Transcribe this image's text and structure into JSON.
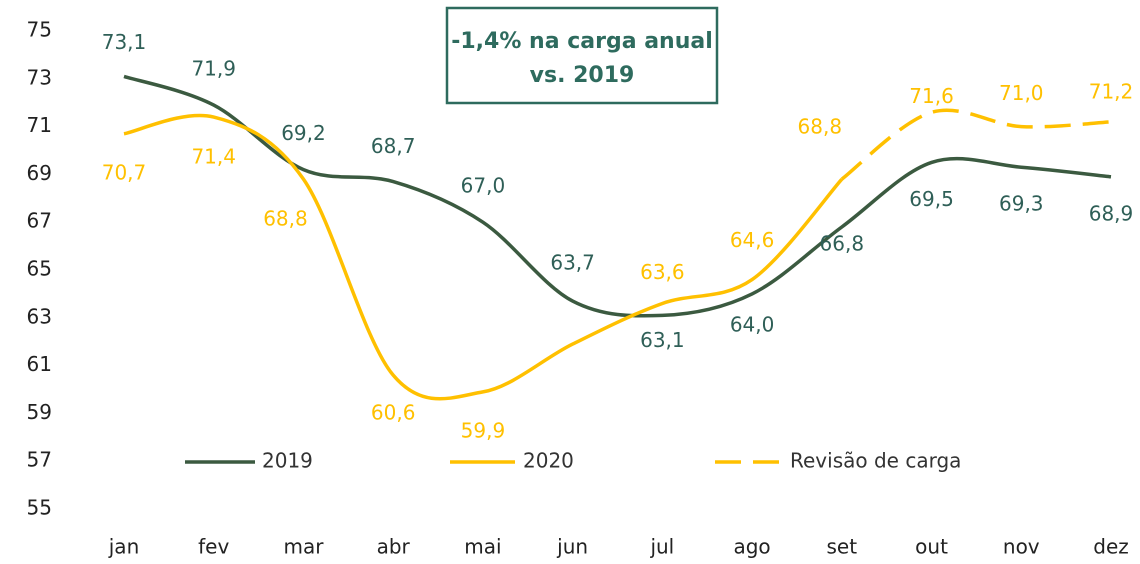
{
  "chart_data": {
    "type": "line",
    "annotation": [
      "-1,4% na carga anual",
      "vs. 2019"
    ],
    "categories": [
      "jan",
      "fev",
      "mar",
      "abr",
      "mai",
      "jun",
      "jul",
      "ago",
      "set",
      "out",
      "nov",
      "dez"
    ],
    "series": [
      {
        "name": "2019",
        "color": "#3b5a40",
        "label_color": "#2f5f57",
        "dashed": false,
        "values": [
          73.1,
          71.9,
          69.2,
          68.7,
          67.0,
          63.7,
          63.1,
          64.0,
          66.8,
          69.5,
          69.3,
          68.9
        ],
        "value_labels": [
          "73,1",
          "71,9",
          "69,2",
          "68,7",
          "67,0",
          "63,7",
          "63,1",
          "64,0",
          "66,8",
          "69,5",
          "69,3",
          "68,9"
        ]
      },
      {
        "name": "2020",
        "color": "#ffc000",
        "label_color": "#ffc000",
        "dashed": false,
        "values": [
          70.7,
          71.4,
          68.8,
          60.6,
          59.9,
          61.9,
          63.6,
          64.6,
          68.8,
          null,
          null,
          null
        ],
        "value_labels": [
          "70,7",
          "71,4",
          "68,8",
          "60,6",
          "59,9",
          null,
          "63,6",
          "64,6",
          "68,8",
          null,
          null,
          null
        ]
      },
      {
        "name": "Revisão de carga",
        "color": "#ffc000",
        "label_color": "#ffc000",
        "dashed": true,
        "values": [
          null,
          null,
          null,
          null,
          null,
          null,
          null,
          null,
          68.8,
          71.6,
          71.0,
          71.2
        ],
        "value_labels": [
          null,
          null,
          null,
          null,
          null,
          null,
          null,
          null,
          null,
          "71,6",
          "71,0",
          "71,2"
        ]
      }
    ],
    "ylim": [
      55,
      75
    ],
    "yticks": [
      55,
      57,
      59,
      61,
      63,
      65,
      67,
      69,
      71,
      73,
      75
    ],
    "grid": false,
    "legend": "bottom"
  }
}
